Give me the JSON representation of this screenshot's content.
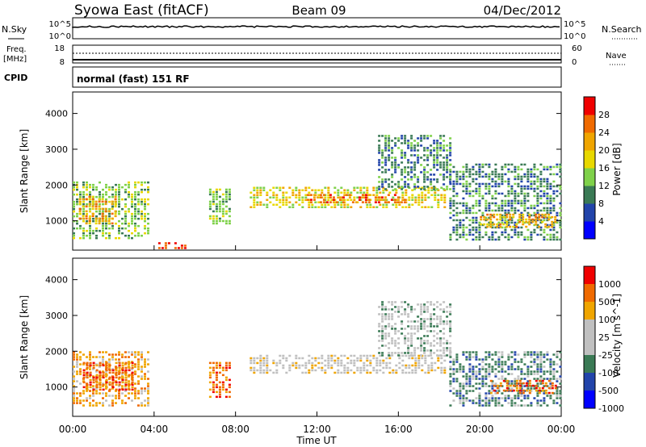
{
  "header": {
    "title": "Syowa East (fitACF)",
    "beam": "Beam 09",
    "date": "04/Dec/2012"
  },
  "top_panel": {
    "left_label": "N.Sky",
    "right_label": "N.Search",
    "left_ticks": [
      "10^5",
      "10^0"
    ],
    "right_ticks": [
      "10^5",
      "10^0"
    ]
  },
  "freq_panel": {
    "left_label_1": "Freq.",
    "left_label_2": "[MHz]",
    "left_ticks": [
      "18",
      "8"
    ],
    "right_label": "Nave",
    "right_ticks": [
      "60",
      "0"
    ]
  },
  "cpid_panel": {
    "label": "CPID",
    "text": "normal (fast) 151 RF"
  },
  "colors": {
    "scale": [
      "#0000ff",
      "#2244aa",
      "#3a7a55",
      "#7fd14a",
      "#e8d800",
      "#f0a500",
      "#f06a00",
      "#f00000"
    ],
    "velocity_gray": "#c0c0c0"
  },
  "chart_data": [
    {
      "type": "heatmap",
      "name": "Power",
      "ylabel": "Slant Range [km]",
      "xlabel": "Time UT",
      "x_ticks": [
        "00:00",
        "04:00",
        "08:00",
        "12:00",
        "16:00",
        "20:00",
        "00:00"
      ],
      "x_range_hours": [
        0,
        24
      ],
      "y_ticks": [
        1000,
        2000,
        3000,
        4000
      ],
      "ylim": [
        180,
        4600
      ],
      "colorbar_label": "Power [dB]",
      "colorbar_ticks": [
        "4",
        "8",
        "12",
        "16",
        "20",
        "24",
        "28"
      ],
      "regions": [
        {
          "t0": 0.0,
          "t1": 3.8,
          "r0": 500,
          "r1": 2100,
          "level": 3
        },
        {
          "t0": 0.3,
          "t1": 2.2,
          "r0": 900,
          "r1": 1700,
          "level": 5
        },
        {
          "t0": 4.2,
          "t1": 5.5,
          "r0": 200,
          "r1": 400,
          "level": 7
        },
        {
          "t0": 6.7,
          "t1": 7.8,
          "r0": 900,
          "r1": 1900,
          "level": 3
        },
        {
          "t0": 8.7,
          "t1": 18.3,
          "r0": 1350,
          "r1": 1950,
          "level": 4
        },
        {
          "t0": 11.5,
          "t1": 16.5,
          "r0": 1500,
          "r1": 1750,
          "level": 6
        },
        {
          "t0": 15.0,
          "t1": 18.5,
          "r0": 1900,
          "r1": 3400,
          "level": 2
        },
        {
          "t0": 18.5,
          "t1": 24.0,
          "r0": 500,
          "r1": 2600,
          "level": 2
        },
        {
          "t0": 20.0,
          "t1": 23.8,
          "r0": 800,
          "r1": 1200,
          "level": 5
        }
      ]
    },
    {
      "type": "heatmap",
      "name": "Velocity",
      "ylabel": "Slant Range [km]",
      "xlabel": "Time UT",
      "x_ticks": [
        "00:00",
        "04:00",
        "08:00",
        "12:00",
        "16:00",
        "20:00",
        "00:00"
      ],
      "x_range_hours": [
        0,
        24
      ],
      "y_ticks": [
        1000,
        2000,
        3000,
        4000
      ],
      "ylim": [
        180,
        4600
      ],
      "colorbar_label": "Velocity [m s^-1]",
      "colorbar_ticks": [
        "1000",
        "500",
        "100",
        "25",
        "-25",
        "-100",
        "-500",
        "-1000"
      ],
      "regions": [
        {
          "t0": 0.0,
          "t1": 3.8,
          "r0": 500,
          "r1": 2000,
          "level": 5
        },
        {
          "t0": 0.5,
          "t1": 3.0,
          "r0": 900,
          "r1": 1700,
          "level": 6
        },
        {
          "t0": 6.7,
          "t1": 7.8,
          "r0": 700,
          "r1": 1700,
          "level": 6
        },
        {
          "t0": 8.7,
          "t1": 18.3,
          "r0": 1400,
          "r1": 1900,
          "level": 4
        },
        {
          "t0": 15.0,
          "t1": 18.5,
          "r0": 1900,
          "r1": 3400,
          "level": 3
        },
        {
          "t0": 18.5,
          "t1": 24.0,
          "r0": 500,
          "r1": 2000,
          "level": 2
        },
        {
          "t0": 20.5,
          "t1": 23.8,
          "r0": 800,
          "r1": 1200,
          "level": 6
        }
      ]
    }
  ]
}
